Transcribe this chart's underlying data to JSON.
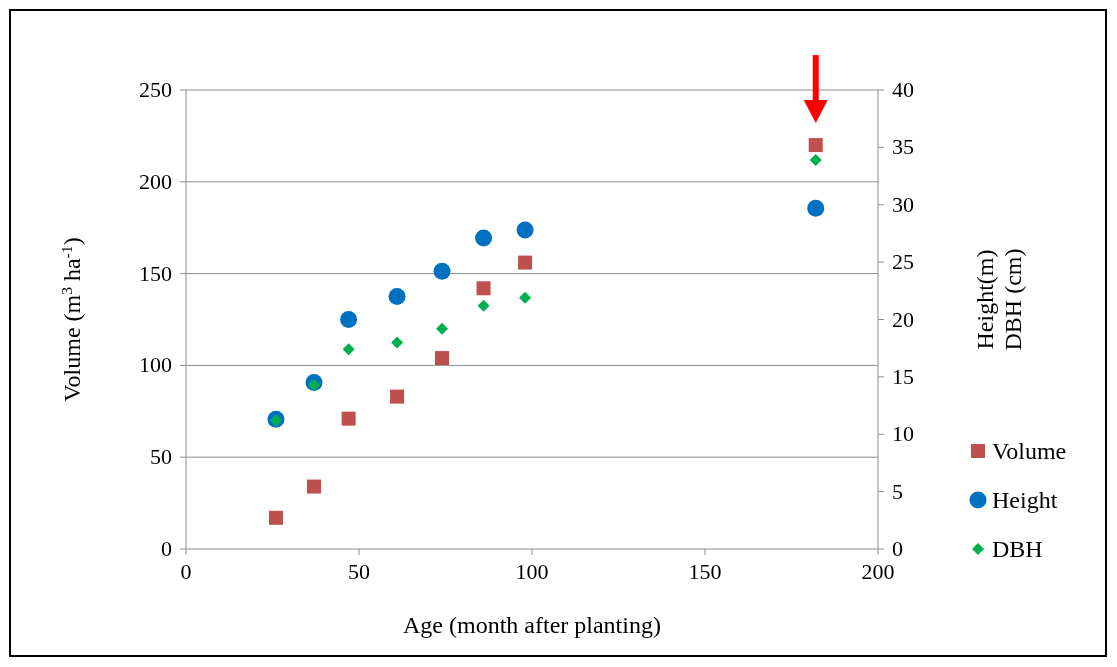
{
  "chart_data": {
    "type": "scatter",
    "xlabel": "Age (month after planting)",
    "ylabel": "Volume (m$^{3}$ ha$^{-1}$)",
    "y2label": "Height(m)\nDBH (cm)",
    "xlim": [
      0,
      200
    ],
    "xticks": [
      0,
      50,
      100,
      150,
      200
    ],
    "ylim": [
      0,
      250
    ],
    "yticks": [
      0,
      50,
      100,
      150,
      200,
      250
    ],
    "y2lim": [
      0,
      40
    ],
    "y2ticks": [
      0,
      5,
      10,
      15,
      20,
      25,
      30,
      35,
      40
    ],
    "grid": "y",
    "legend": "right",
    "series": [
      {
        "name": "Volume",
        "color": "#c0504d",
        "marker": "square",
        "x": [
          26,
          37,
          47,
          61,
          74,
          86,
          98,
          182
        ],
        "values": [
          17,
          34,
          71,
          83,
          104,
          142,
          156,
          220
        ]
      },
      {
        "name": "Height",
        "color": "#0070c0",
        "marker": "circle",
        "axis": "y2",
        "x": [
          26,
          37,
          47,
          61,
          74,
          86,
          98,
          182
        ],
        "values": [
          11.3,
          14.5,
          20,
          22,
          24.2,
          27.1,
          27.8,
          29.7
        ]
      },
      {
        "name": "DBH",
        "color": "#00b050",
        "marker": "diamond",
        "axis": "y2",
        "x": [
          26,
          37,
          47,
          61,
          74,
          86,
          98,
          182
        ],
        "values": [
          11.2,
          14.3,
          17.4,
          18,
          19.2,
          21.2,
          21.9,
          33.9
        ]
      }
    ]
  }
}
